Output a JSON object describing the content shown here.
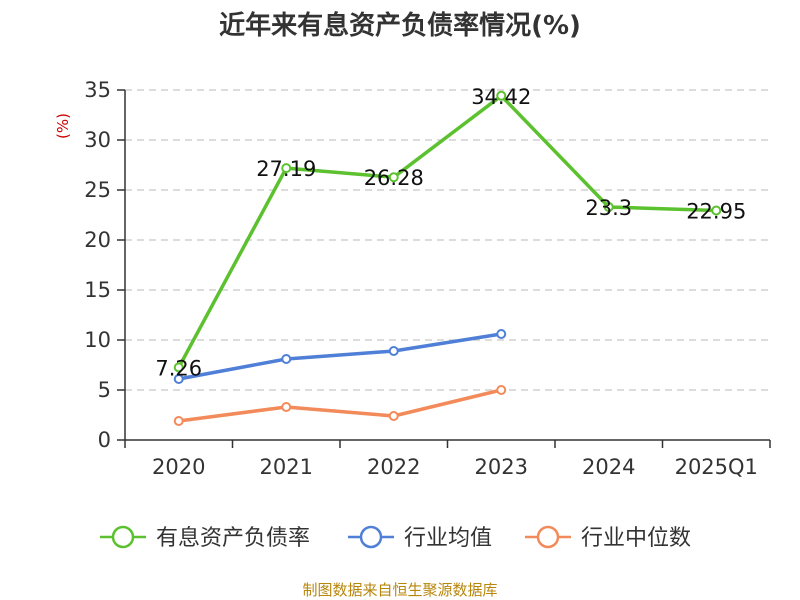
{
  "chart_data": {
    "type": "line",
    "title": "近年来有息资产负债率情况(%)",
    "unit_label": "(%)",
    "categories": [
      "2020",
      "2021",
      "2022",
      "2023",
      "2024",
      "2025Q1"
    ],
    "ylim": [
      0,
      35
    ],
    "yticks": [
      0,
      5,
      10,
      15,
      20,
      25,
      30,
      35
    ],
    "grid": true,
    "legend_position": "bottom",
    "series": [
      {
        "name": "有息资产负债率",
        "color": "#5cc12e",
        "values": [
          7.26,
          27.19,
          26.28,
          34.42,
          23.3,
          22.95
        ],
        "labels": [
          "7.26",
          "27.19",
          "26.28",
          "34.42",
          "23.3",
          "22.95"
        ]
      },
      {
        "name": "行业均值",
        "color": "#4f7fd6",
        "values": [
          6.1,
          8.1,
          8.9,
          10.6,
          null,
          null
        ]
      },
      {
        "name": "行业中位数",
        "color": "#f28a5a",
        "values": [
          1.9,
          3.3,
          2.4,
          5.0,
          null,
          null
        ]
      }
    ],
    "source": "制图数据来自恒生聚源数据库"
  }
}
